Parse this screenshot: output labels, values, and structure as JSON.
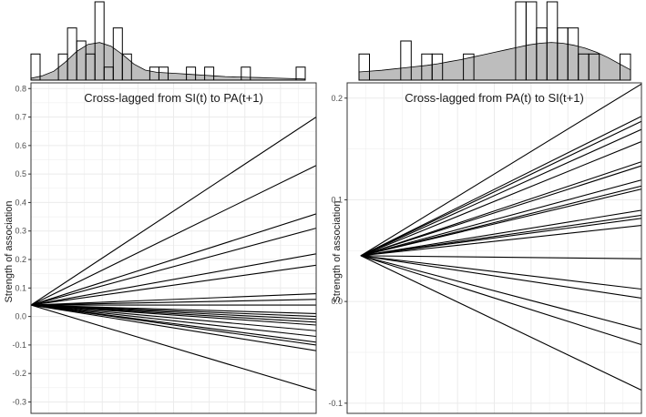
{
  "colors": {
    "density_fill": "#bdbdbd",
    "line": "#000000",
    "grid": "#ebebeb",
    "frame": "#333333"
  },
  "chart_data": [
    {
      "type": "line",
      "title": "Cross-lagged from SI(t) to PA(t+1)",
      "ylabel": "Strength of association",
      "xlabel": "",
      "ylim": [
        -0.34,
        0.82
      ],
      "yticks": [
        -0.3,
        -0.2,
        -0.1,
        0,
        0.1,
        0.2,
        0.3,
        0.4,
        0.5,
        0.6,
        0.7,
        0.8
      ],
      "ytick_labels": [
        "-0.3",
        "-0.2",
        "-0.1",
        "0.0",
        "0.1",
        "0.2",
        "0.3",
        "0.4",
        "0.5",
        "0.6",
        "0.7",
        "0.8"
      ],
      "grid": true,
      "start_value": 0.04,
      "end_values": [
        0.7,
        0.53,
        0.36,
        0.31,
        0.22,
        0.18,
        0.08,
        0.06,
        0.04,
        0.01,
        0.0,
        -0.01,
        -0.02,
        -0.03,
        -0.05,
        -0.07,
        -0.09,
        -0.1,
        -0.12,
        -0.26
      ],
      "histogram": [
        2,
        0,
        0,
        2,
        4,
        3,
        2,
        6,
        1,
        4,
        2,
        0,
        0,
        1,
        1,
        0,
        0,
        1,
        0,
        1,
        0,
        0,
        0,
        1,
        0,
        0,
        0,
        0,
        0,
        1
      ],
      "density": [
        0.05,
        0.12,
        0.25,
        0.5,
        0.8,
        1.0,
        1.05,
        0.95,
        0.72,
        0.45,
        0.28,
        0.22,
        0.2,
        0.18,
        0.16,
        0.14,
        0.12,
        0.1,
        0.09,
        0.08,
        0.07,
        0.06,
        0.05,
        0.04,
        0.03
      ]
    },
    {
      "type": "line",
      "title": "Cross-lagged from PA(t) to SI(t+1)",
      "ylabel": "Strength of association",
      "xlabel": "",
      "ylim": [
        -0.11,
        0.215
      ],
      "yticks": [
        -0.1,
        0.0,
        0.1,
        0.2
      ],
      "ytick_labels": [
        "-0.1",
        "0.0",
        "0.1",
        "0.2"
      ],
      "grid": true,
      "start_value": 0.045,
      "end_values": [
        0.215,
        0.183,
        0.178,
        0.17,
        0.158,
        0.138,
        0.134,
        0.12,
        0.114,
        0.111,
        0.09,
        0.085,
        0.082,
        0.075,
        0.042,
        0.012,
        0.003,
        -0.028,
        -0.043,
        -0.088
      ],
      "histogram": [
        2,
        0,
        0,
        0,
        3,
        0,
        2,
        2,
        0,
        0,
        2,
        0,
        0,
        0,
        0,
        6,
        6,
        4,
        6,
        4,
        4,
        2,
        2,
        0,
        0,
        2
      ],
      "density": [
        0.2,
        0.22,
        0.24,
        0.27,
        0.3,
        0.33,
        0.36,
        0.4,
        0.45,
        0.5,
        0.56,
        0.62,
        0.68,
        0.74,
        0.8,
        0.86,
        0.9,
        0.92,
        0.9,
        0.85,
        0.78,
        0.68,
        0.55,
        0.4,
        0.25
      ]
    }
  ]
}
